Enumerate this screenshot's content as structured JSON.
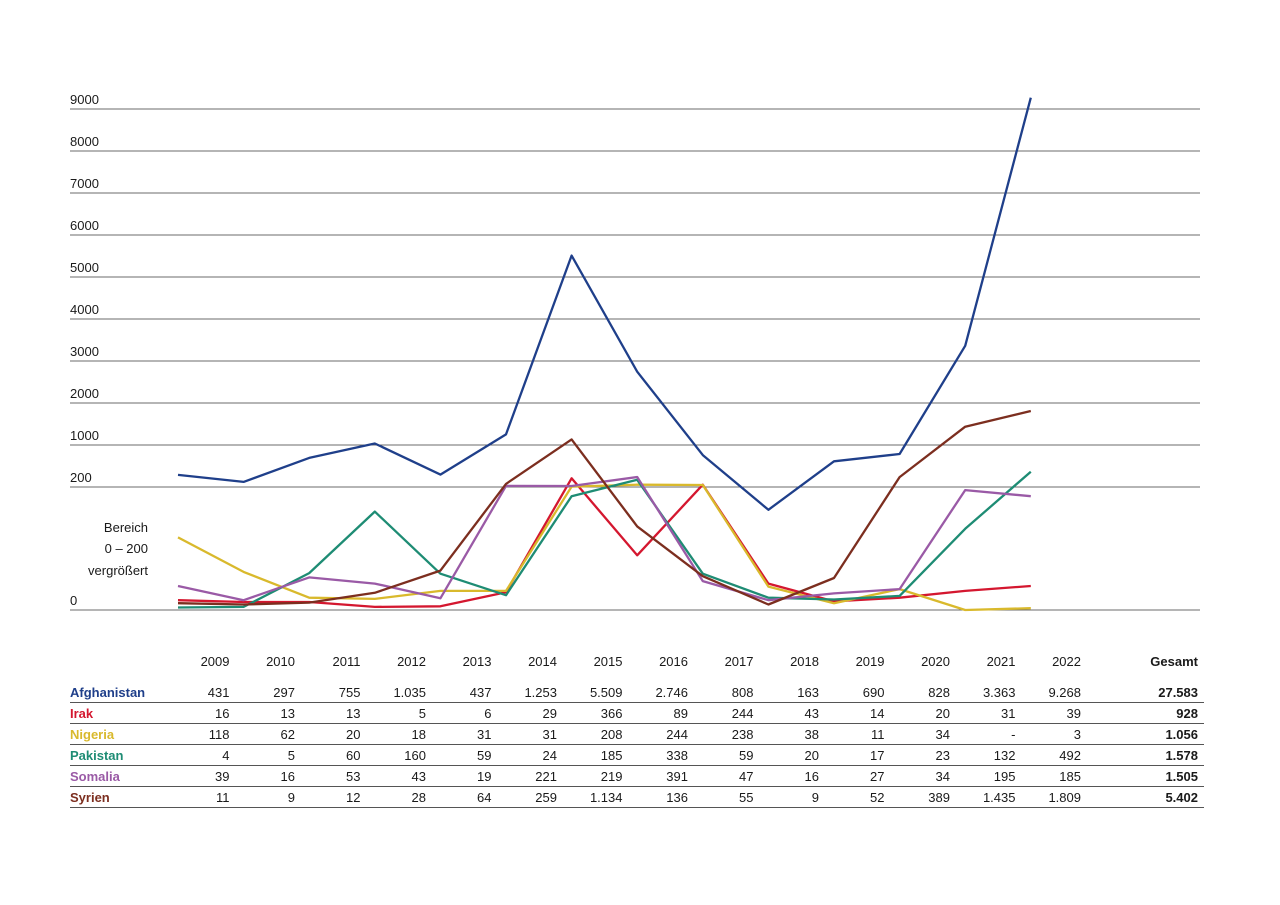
{
  "chart_data": {
    "type": "line",
    "years": [
      "2009",
      "2010",
      "2011",
      "2012",
      "2013",
      "2014",
      "2015",
      "2016",
      "2017",
      "2018",
      "2019",
      "2020",
      "2021",
      "2022"
    ],
    "yaxis_upper_ticks": [
      "200",
      "1000",
      "2000",
      "3000",
      "4000",
      "5000",
      "6000",
      "7000",
      "8000",
      "9000"
    ],
    "yaxis_lower_ticks": [
      "0"
    ],
    "zoom_note": [
      "Bereich",
      "0 – 200",
      "vergrößert"
    ],
    "split_value": 200,
    "lower_range": [
      0,
      200
    ],
    "upper_range": [
      200,
      9000
    ],
    "total_label": "Gesamt",
    "series": [
      {
        "name": "Afghanistan",
        "color": "#1f3f8a",
        "values": [
          431,
          297,
          755,
          1035,
          437,
          1253,
          5509,
          2746,
          808,
          163,
          690,
          828,
          3363,
          9268
        ],
        "labels": [
          "431",
          "297",
          "755",
          "1.035",
          "437",
          "1.253",
          "5.509",
          "2.746",
          "808",
          "163",
          "690",
          "828",
          "3.363",
          "9.268"
        ],
        "total": "27.583"
      },
      {
        "name": "Irak",
        "color": "#d4172f",
        "values": [
          16,
          13,
          13,
          5,
          6,
          29,
          366,
          89,
          244,
          43,
          14,
          20,
          31,
          39
        ],
        "labels": [
          "16",
          "13",
          "13",
          "5",
          "6",
          "29",
          "366",
          "89",
          "244",
          "43",
          "14",
          "20",
          "31",
          "39"
        ],
        "total": "928"
      },
      {
        "name": "Nigeria",
        "color": "#d9b92c",
        "values": [
          118,
          62,
          20,
          18,
          31,
          31,
          208,
          244,
          238,
          38,
          11,
          34,
          0,
          3
        ],
        "labels": [
          "118",
          "62",
          "20",
          "18",
          "31",
          "31",
          "208",
          "244",
          "238",
          "38",
          "11",
          "34",
          "-",
          "3"
        ],
        "total": "1.056"
      },
      {
        "name": "Pakistan",
        "color": "#1e8c74",
        "values": [
          4,
          5,
          60,
          160,
          59,
          24,
          185,
          338,
          59,
          20,
          17,
          23,
          132,
          492
        ],
        "labels": [
          "4",
          "5",
          "60",
          "160",
          "59",
          "24",
          "185",
          "338",
          "59",
          "20",
          "17",
          "23",
          "132",
          "492"
        ],
        "total": "1.578"
      },
      {
        "name": "Somalia",
        "color": "#9a5aa6",
        "values": [
          39,
          16,
          53,
          43,
          19,
          221,
          219,
          391,
          47,
          16,
          27,
          34,
          195,
          185
        ],
        "labels": [
          "39",
          "16",
          "53",
          "43",
          "19",
          "221",
          "219",
          "391",
          "47",
          "16",
          "27",
          "34",
          "195",
          "185"
        ],
        "total": "1.505"
      },
      {
        "name": "Syrien",
        "color": "#7c2e1f",
        "values": [
          11,
          9,
          12,
          28,
          64,
          259,
          1134,
          136,
          55,
          9,
          52,
          389,
          1435,
          1809
        ],
        "labels": [
          "11",
          "9",
          "12",
          "28",
          "64",
          "259",
          "1.134",
          "136",
          "55",
          "9",
          "52",
          "389",
          "1.435",
          "1.809"
        ],
        "total": "5.402"
      }
    ]
  }
}
